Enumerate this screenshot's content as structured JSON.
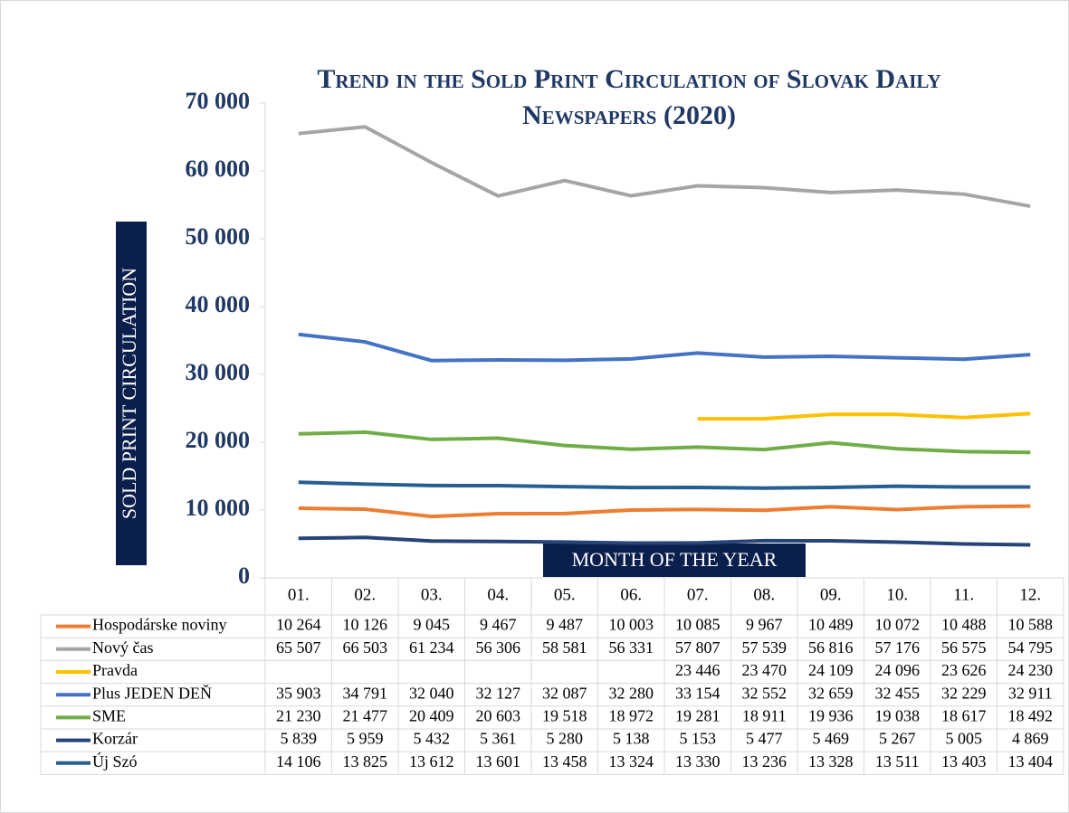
{
  "chart_data": {
    "type": "line",
    "title": "Trend in the Sold Print Circulation of Slovak Daily Newspapers (2020)",
    "y_label": "SOLD PRINT CIRCULATION",
    "x_label": "MONTH OF THE YEAR",
    "categories": [
      "01.",
      "02.",
      "03.",
      "04.",
      "05.",
      "06.",
      "07.",
      "08.",
      "09.",
      "10.",
      "11.",
      "12."
    ],
    "ylim": [
      0,
      70000
    ],
    "yticks": [
      {
        "value": 0,
        "label": "0"
      },
      {
        "value": 10000,
        "label": "10 000"
      },
      {
        "value": 20000,
        "label": "20 000"
      },
      {
        "value": 30000,
        "label": "30 000"
      },
      {
        "value": 40000,
        "label": "40 000"
      },
      {
        "value": 50000,
        "label": "50 000"
      },
      {
        "value": 60000,
        "label": "60 000"
      },
      {
        "value": 70000,
        "label": "70 000"
      }
    ],
    "series": [
      {
        "name": "Hospodárske noviny",
        "color": "#ed7d31",
        "values": [
          10264,
          10126,
          9045,
          9467,
          9487,
          10003,
          10085,
          9967,
          10489,
          10072,
          10488,
          10588
        ],
        "value_labels": [
          "10 264",
          "10 126",
          "9 045",
          "9 467",
          "9 487",
          "10 003",
          "10 085",
          "9 967",
          "10 489",
          "10 072",
          "10 488",
          "10 588"
        ]
      },
      {
        "name": "Nový čas",
        "color": "#a5a5a5",
        "values": [
          65507,
          66503,
          61234,
          56306,
          58581,
          56331,
          57807,
          57539,
          56816,
          57176,
          56575,
          54795
        ],
        "value_labels": [
          "65 507",
          "66 503",
          "61 234",
          "56 306",
          "58 581",
          "56 331",
          "57 807",
          "57 539",
          "56 816",
          "57 176",
          "56 575",
          "54 795"
        ]
      },
      {
        "name": "Pravda",
        "color": "#ffc000",
        "values": [
          null,
          null,
          null,
          null,
          null,
          null,
          23446,
          23470,
          24109,
          24096,
          23626,
          24230
        ],
        "value_labels": [
          null,
          null,
          null,
          null,
          null,
          null,
          "23 446",
          "23 470",
          "24 109",
          "24 096",
          "23 626",
          "24 230"
        ]
      },
      {
        "name": "Plus JEDEN DEŇ",
        "color": "#4472c4",
        "values": [
          35903,
          34791,
          32040,
          32127,
          32087,
          32280,
          33154,
          32552,
          32659,
          32455,
          32229,
          32911
        ],
        "value_labels": [
          "35 903",
          "34 791",
          "32 040",
          "32 127",
          "32 087",
          "32 280",
          "33 154",
          "32 552",
          "32 659",
          "32 455",
          "32 229",
          "32 911"
        ]
      },
      {
        "name": "SME",
        "color": "#70ad47",
        "values": [
          21230,
          21477,
          20409,
          20603,
          19518,
          18972,
          19281,
          18911,
          19936,
          19038,
          18617,
          18492
        ],
        "value_labels": [
          "21 230",
          "21 477",
          "20 409",
          "20 603",
          "19 518",
          "18 972",
          "19 281",
          "18 911",
          "19 936",
          "19 038",
          "18 617",
          "18 492"
        ]
      },
      {
        "name": "Korzár",
        "color": "#264478",
        "values": [
          5839,
          5959,
          5432,
          5361,
          5280,
          5138,
          5153,
          5477,
          5469,
          5267,
          5005,
          4869
        ],
        "value_labels": [
          "5 839",
          "5 959",
          "5 432",
          "5 361",
          "5 280",
          "5 138",
          "5 153",
          "5 477",
          "5 469",
          "5 267",
          "5 005",
          "4 869"
        ]
      },
      {
        "name": "Új Szó",
        "color": "#255e91",
        "values": [
          14106,
          13825,
          13612,
          13601,
          13458,
          13324,
          13330,
          13236,
          13328,
          13511,
          13403,
          13404
        ],
        "value_labels": [
          "14 106",
          "13 825",
          "13 612",
          "13 601",
          "13 458",
          "13 324",
          "13 330",
          "13 236",
          "13 328",
          "13 511",
          "13 403",
          "13 404"
        ]
      }
    ]
  }
}
